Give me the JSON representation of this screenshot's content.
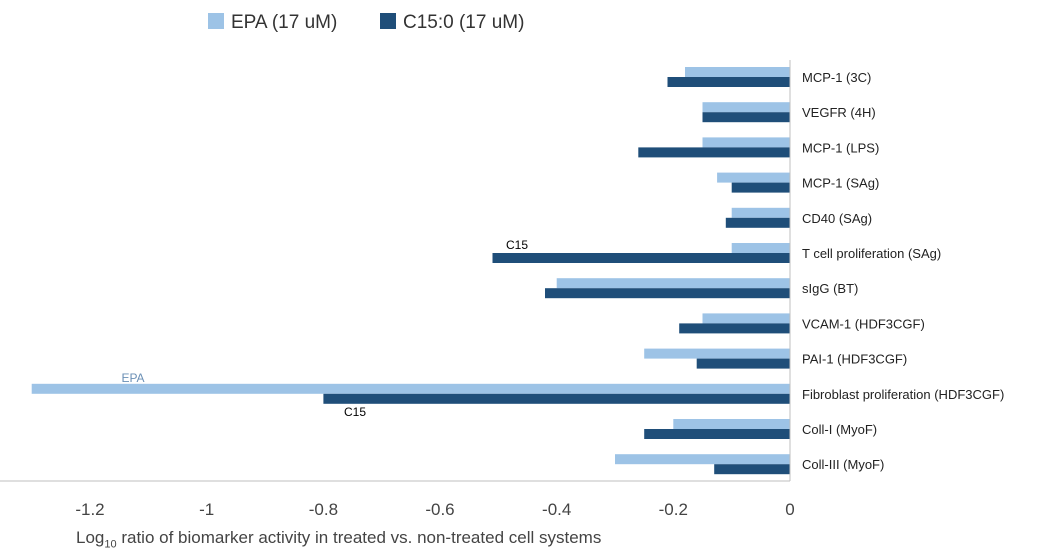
{
  "chart_data": {
    "type": "bar",
    "orientation": "horizontal",
    "categories": [
      "MCP-1 (3C)",
      "VEGFR (4H)",
      "MCP-1 (LPS)",
      "MCP-1 (SAg)",
      "CD40 (SAg)",
      "T cell proliferation (SAg)",
      "sIgG (BT)",
      "VCAM-1 (HDF3CGF)",
      "PAI-1 (HDF3CGF)",
      "Fibroblast proliferation (HDF3CGF)",
      "Coll-I (MyoF)",
      "Coll-III (MyoF)"
    ],
    "series": [
      {
        "name": "EPA (17 uM)",
        "color": "#9DC3E6",
        "values": [
          -0.18,
          -0.15,
          -0.15,
          -0.125,
          -0.1,
          -0.1,
          -0.4,
          -0.15,
          -0.25,
          -1.3,
          -0.2,
          -0.3
        ]
      },
      {
        "name": "C15:0 (17 uM)",
        "color": "#1F4E79",
        "values": [
          -0.21,
          -0.15,
          -0.26,
          -0.1,
          -0.11,
          -0.51,
          -0.42,
          -0.19,
          -0.16,
          -0.8,
          -0.25,
          -0.13
        ]
      }
    ],
    "xlim": [
      -1.3,
      0
    ],
    "xticks": [
      "-1.2",
      "-1",
      "-0.8",
      "-0.6",
      "-0.4",
      "-0.2",
      "0"
    ],
    "xlabel_main": "Log",
    "xlabel_sub": "10",
    "xlabel_rest": " ratio of biomarker activity in treated vs. non-treated cell systems",
    "legend_position": "top",
    "grid": false,
    "annotations": [
      {
        "text": "C15",
        "category_index": 5,
        "series_index": 1,
        "color": "#000000"
      },
      {
        "text": "EPA",
        "category_index": 9,
        "series_index": 0,
        "color": "#6A8FB5"
      },
      {
        "text": "C15",
        "category_index": 9,
        "series_index": 1,
        "color": "#000000"
      }
    ]
  }
}
